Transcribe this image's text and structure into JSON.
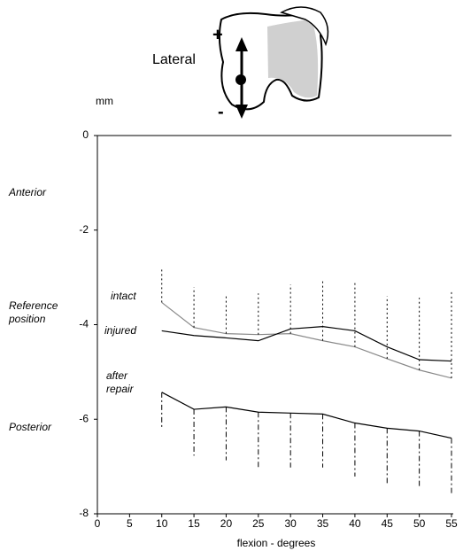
{
  "chart_data": {
    "type": "line",
    "x_label": "flexion - degrees",
    "y_label": "mm",
    "annotations": [
      "Anterior",
      "Reference position",
      "Posterior"
    ],
    "diagram": {
      "label": "Lateral",
      "plus": "+",
      "minus": "-"
    },
    "x": [
      10,
      15,
      20,
      25,
      30,
      35,
      40,
      45,
      50,
      55
    ],
    "series": [
      {
        "name": "intact",
        "color": "#888888",
        "values": [
          -3.53,
          -4.06,
          -4.19,
          -4.21,
          -4.19,
          -4.34,
          -4.47,
          -4.72,
          -4.96,
          -5.13
        ],
        "error_up": [
          0.75,
          0.85,
          0.83,
          0.87,
          1.04,
          1.26,
          1.36,
          1.32,
          1.53,
          1.85
        ]
      },
      {
        "name": "injured",
        "color": "#000000",
        "values": [
          -4.13,
          -4.23,
          -4.28,
          -4.34,
          -4.09,
          -4.04,
          -4.13,
          -4.47,
          -4.74,
          -4.77
        ]
      },
      {
        "name": "after repair",
        "color": "#000000",
        "values": [
          -5.43,
          -5.79,
          -5.74,
          -5.85,
          -5.87,
          -5.89,
          -6.08,
          -6.19,
          -6.25,
          -6.4
        ],
        "error_down": [
          0.77,
          0.98,
          1.13,
          1.17,
          1.15,
          1.13,
          1.13,
          1.17,
          1.21,
          1.19
        ]
      }
    ],
    "xlim": [
      0,
      55
    ],
    "xticks": [
      0,
      5,
      10,
      15,
      20,
      25,
      30,
      35,
      40,
      45,
      50,
      55
    ],
    "ylim": [
      -8,
      0
    ],
    "yticks": [
      0,
      -2,
      -4,
      -6,
      -8
    ]
  }
}
